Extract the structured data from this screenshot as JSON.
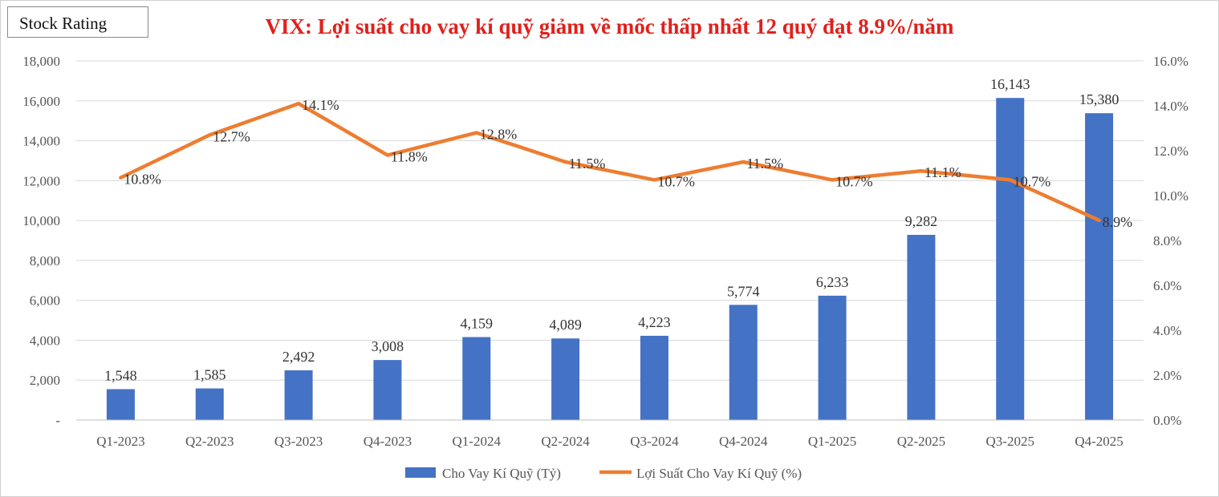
{
  "badge": {
    "label": "Stock Rating"
  },
  "chart_data": {
    "type": "bar",
    "title": "VIX: Lợi suất cho vay kí quỹ giảm về mốc thấp nhất 12 quý đạt 8.9%/năm",
    "categories": [
      "Q1-2023",
      "Q2-2023",
      "Q3-2023",
      "Q4-2023",
      "Q1-2024",
      "Q2-2024",
      "Q3-2024",
      "Q4-2024",
      "Q1-2025",
      "Q2-2025",
      "Q3-2025",
      "Q4-2025"
    ],
    "series": [
      {
        "name": "Cho Vay Kí Quỹ (Tỷ)",
        "type": "bar",
        "axis": "left",
        "color": "#4472c4",
        "values": [
          1548,
          1585,
          2492,
          3008,
          4159,
          4089,
          4223,
          5774,
          6233,
          9282,
          16143,
          15380
        ],
        "labels": [
          "1,548",
          "1,585",
          "2,492",
          "3,008",
          "4,159",
          "4,089",
          "4,223",
          "5,774",
          "6,233",
          "9,282",
          "16,143",
          "15,380"
        ]
      },
      {
        "name": "Lợi Suất Cho Vay Kí Quỹ (%)",
        "type": "line",
        "axis": "right",
        "color": "#ed7d31",
        "values": [
          10.8,
          12.7,
          14.1,
          11.8,
          12.8,
          11.5,
          10.7,
          11.5,
          10.7,
          11.1,
          10.7,
          8.9
        ],
        "labels": [
          "10.8%",
          "12.7%",
          "14.1%",
          "11.8%",
          "12.8%",
          "11.5%",
          "10.7%",
          "11.5%",
          "10.7%",
          "11.1%",
          "10.7%",
          "8.9%"
        ]
      }
    ],
    "y_left": {
      "min": 0,
      "max": 18000,
      "ticks": [
        "-",
        "2,000",
        "4,000",
        "6,000",
        "8,000",
        "10,000",
        "12,000",
        "14,000",
        "16,000",
        "18,000"
      ]
    },
    "y_right": {
      "min": 0,
      "max": 16,
      "ticks": [
        "0.0%",
        "2.0%",
        "4.0%",
        "6.0%",
        "8.0%",
        "10.0%",
        "12.0%",
        "14.0%",
        "16.0%"
      ]
    },
    "grid": true,
    "legend_position": "bottom"
  }
}
